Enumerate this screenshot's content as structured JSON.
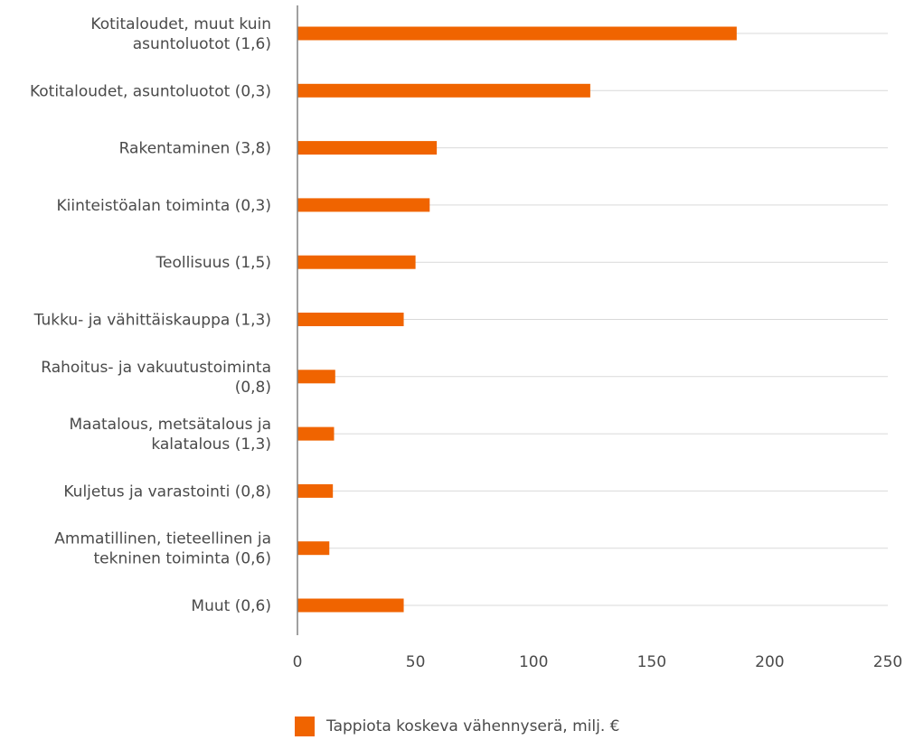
{
  "chart_data": {
    "type": "bar",
    "orientation": "horizontal",
    "categories": [
      [
        "Kotitaloudet, muut kuin",
        "asuntoluotot (1,6)"
      ],
      [
        "Kotitaloudet, asuntoluotot (0,3)"
      ],
      [
        "Rakentaminen (3,8)"
      ],
      [
        "Kiinteistöalan toiminta (0,3)"
      ],
      [
        "Teollisuus (1,5)"
      ],
      [
        "Tukku- ja vähittäiskauppa (1,3)"
      ],
      [
        "Rahoitus- ja vakuutustoiminta",
        "(0,8)"
      ],
      [
        "Maatalous, metsätalous ja",
        "kalatalous (1,3)"
      ],
      [
        "Kuljetus ja varastointi (0,8)"
      ],
      [
        "Ammatillinen, tieteellinen ja",
        "tekninen toiminta (0,6)"
      ],
      [
        "Muut (0,6)"
      ]
    ],
    "series": [
      {
        "name": "Tappiota koskeva vähennyserä, milj. €",
        "color": "#f06400",
        "values": [
          186,
          124,
          59,
          56,
          50,
          45,
          16,
          15.5,
          15,
          13.5,
          45
        ]
      }
    ],
    "xlim": [
      0,
      250
    ],
    "xticks": [
      "0",
      "50",
      "100",
      "150",
      "200",
      "250"
    ],
    "grid": "horizontal",
    "legend_position": "bottom"
  }
}
